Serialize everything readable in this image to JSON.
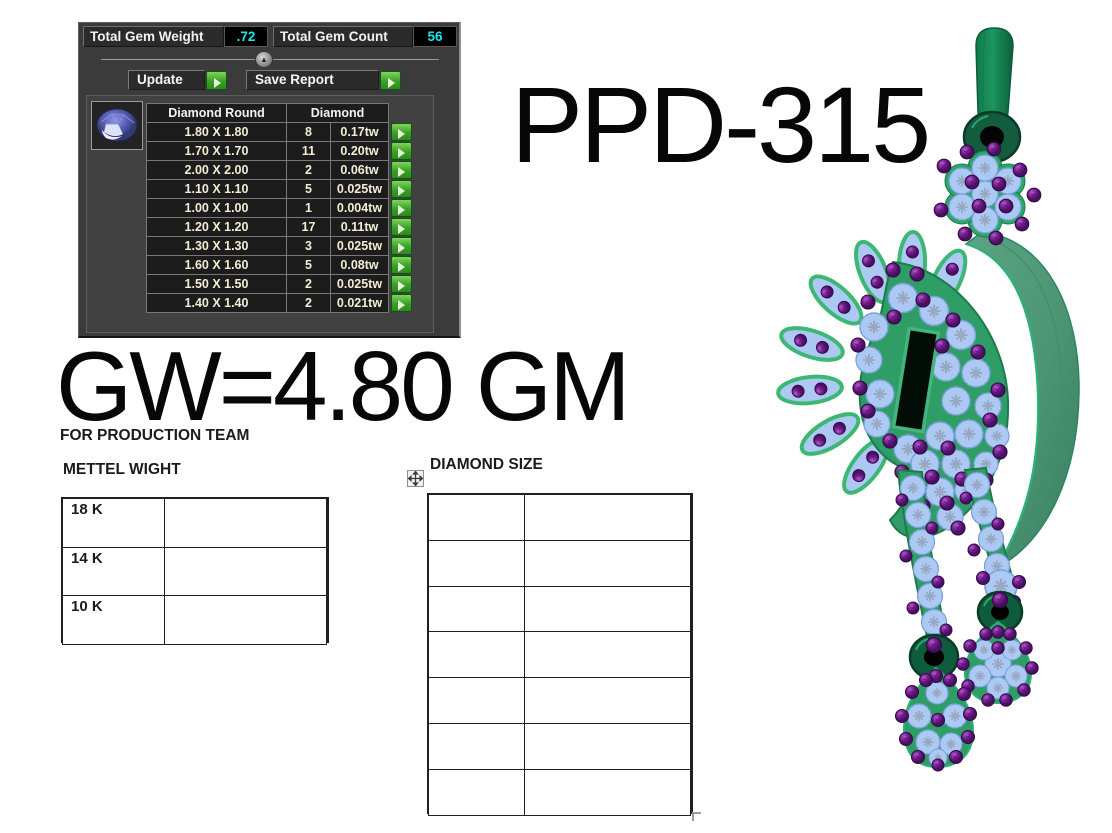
{
  "colors": {
    "panel_bg": "#3b3b3b",
    "value_cyan": "#19e8e8",
    "button_green": "#38a026",
    "metal_green": "#2f9e66",
    "leaf_green": "#4f9878",
    "gem_blue": "#abc9f3",
    "gem_purple": "#7d2496"
  },
  "gem_panel": {
    "weight_label": "Total Gem Weight",
    "weight_value": ".72",
    "count_label": "Total Gem Count",
    "count_value": "56",
    "update_button": "Update",
    "save_report_button": "Save Report",
    "table": {
      "group_header": "Diamond Round",
      "detail_header": "Diamond",
      "rows": [
        {
          "size": "1.80 X 1.80",
          "count": "8",
          "weight": "0.17tw"
        },
        {
          "size": "1.70 X 1.70",
          "count": "11",
          "weight": "0.20tw"
        },
        {
          "size": "2.00 X 2.00",
          "count": "2",
          "weight": "0.06tw"
        },
        {
          "size": "1.10 X 1.10",
          "count": "5",
          "weight": "0.025tw"
        },
        {
          "size": "1.00 X 1.00",
          "count": "1",
          "weight": "0.004tw"
        },
        {
          "size": "1.20 X 1.20",
          "count": "17",
          "weight": "0.11tw"
        },
        {
          "size": "1.30 X 1.30",
          "count": "3",
          "weight": "0.025tw"
        },
        {
          "size": "1.60 X 1.60",
          "count": "5",
          "weight": "0.08tw"
        },
        {
          "size": "1.50 X 1.50",
          "count": "2",
          "weight": "0.025tw"
        },
        {
          "size": "1.40 X 1.40",
          "count": "2",
          "weight": "0.021tw"
        }
      ]
    }
  },
  "annotations": {
    "design_code": "PPD-315",
    "gross_weight": "GW=4.80 GM",
    "for_production_team": "FOR PRODUCTION TEAM",
    "metal_weight_title": "METTEL WIGHT",
    "diamond_size_title": "DIAMOND SIZE"
  },
  "metal_weight_table": {
    "rows": [
      {
        "karat": "18 K",
        "value": ""
      },
      {
        "karat": "14 K",
        "value": ""
      },
      {
        "karat": "10 K",
        "value": ""
      }
    ]
  },
  "diamond_size_table": {
    "rows": [
      {
        "size": "",
        "qty": ""
      },
      {
        "size": "",
        "qty": ""
      },
      {
        "size": "",
        "qty": ""
      },
      {
        "size": "",
        "qty": ""
      },
      {
        "size": "",
        "qty": ""
      },
      {
        "size": "",
        "qty": ""
      },
      {
        "size": "",
        "qty": ""
      }
    ]
  }
}
